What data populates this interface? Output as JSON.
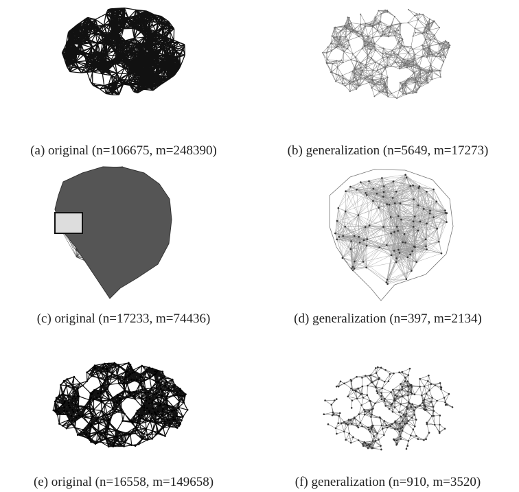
{
  "figure": {
    "panels": [
      {
        "caption": "(a) original (n=106675, m=248390)"
      },
      {
        "caption": "(b) generalization (n=5649, m=17273)"
      },
      {
        "caption": "(c) original (n=17233, m=74436)"
      },
      {
        "caption": "(d) generalization (n=397, m=2134)"
      },
      {
        "caption": "(e) original (n=16558, m=149658)"
      },
      {
        "caption": "(f) generalization (n=910, m=3520)"
      }
    ]
  }
}
